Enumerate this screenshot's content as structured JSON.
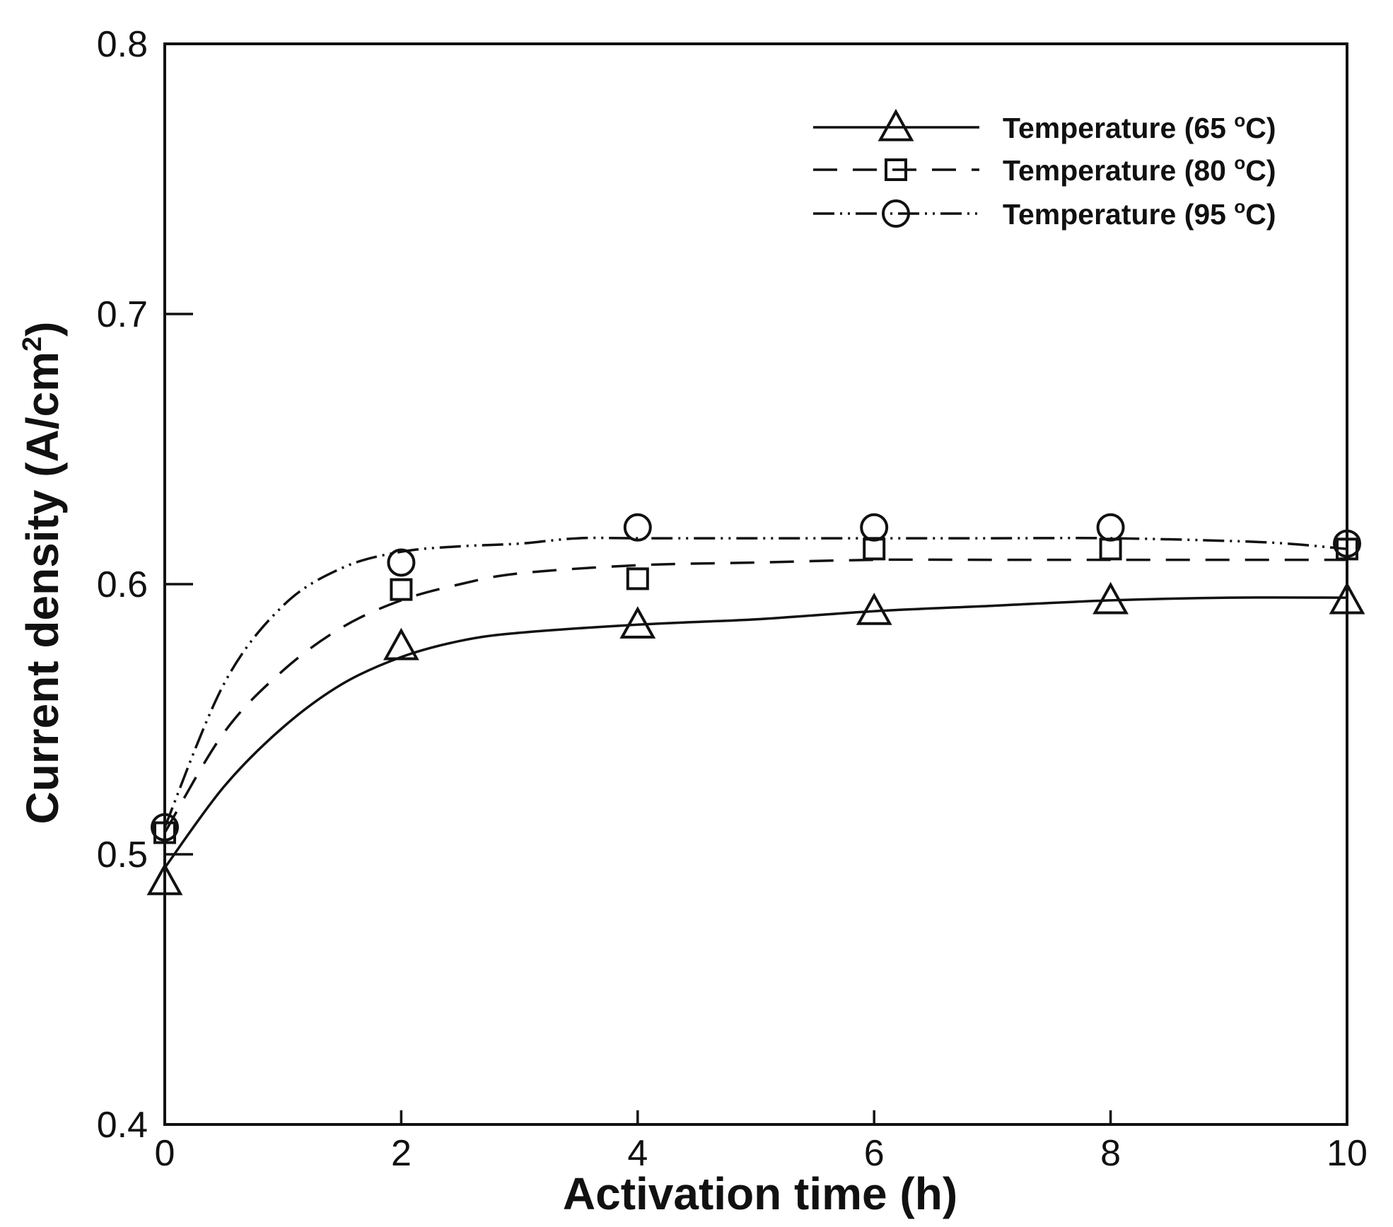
{
  "chart_data": {
    "type": "line",
    "title": "",
    "xlabel": "Activation time (h)",
    "ylabel_main": "Current density (A/cm",
    "ylabel_sup": "2",
    "ylabel_close": ")",
    "xlim": [
      0,
      10
    ],
    "ylim": [
      0.4,
      0.8
    ],
    "x_ticks": [
      0,
      2,
      4,
      6,
      8,
      10
    ],
    "x_tick_labels": [
      "0",
      "2",
      "4",
      "6",
      "8",
      "10"
    ],
    "y_ticks": [
      0.4,
      0.5,
      0.6,
      0.7,
      0.8
    ],
    "y_tick_labels": [
      "0.4",
      "0.5",
      "0.6",
      "0.7",
      "0.8"
    ],
    "grid": false,
    "legend_position": "top-right",
    "series": [
      {
        "name": "Temperature (65 °C)",
        "label_main": "Temperature (65 ",
        "label_sup": "o",
        "label_unit": "C)",
        "marker": "triangle",
        "line_style": "solid",
        "x": [
          0,
          2,
          4,
          6,
          8,
          10
        ],
        "values": [
          0.49,
          0.577,
          0.585,
          0.59,
          0.594,
          0.594
        ],
        "fit_x": [
          0,
          0.5,
          1,
          1.5,
          2,
          2.5,
          3,
          4,
          5,
          6,
          7,
          8,
          9,
          10
        ],
        "fit_y": [
          0.495,
          0.525,
          0.547,
          0.563,
          0.573,
          0.579,
          0.582,
          0.585,
          0.587,
          0.59,
          0.592,
          0.594,
          0.595,
          0.595
        ]
      },
      {
        "name": "Temperature (80 °C)",
        "label_main": "Temperature (80 ",
        "label_sup": "o",
        "label_unit": "C)",
        "marker": "square",
        "line_style": "dashed",
        "x": [
          0,
          2,
          4,
          6,
          8,
          10
        ],
        "values": [
          0.508,
          0.598,
          0.602,
          0.613,
          0.613,
          0.613
        ],
        "fit_x": [
          0,
          0.5,
          1,
          1.5,
          2,
          2.5,
          3,
          4,
          5,
          6,
          7,
          8,
          9,
          10
        ],
        "fit_y": [
          0.508,
          0.545,
          0.568,
          0.584,
          0.594,
          0.6,
          0.604,
          0.607,
          0.608,
          0.609,
          0.609,
          0.609,
          0.609,
          0.609
        ]
      },
      {
        "name": "Temperature (95 °C)",
        "label_main": "Temperature (95 ",
        "label_sup": "o",
        "label_unit": "C)",
        "marker": "circle",
        "line_style": "dash-dot-dot",
        "x": [
          0,
          2,
          4,
          6,
          8,
          10
        ],
        "values": [
          0.51,
          0.608,
          0.621,
          0.621,
          0.621,
          0.615
        ],
        "fit_x": [
          0,
          0.5,
          1,
          1.5,
          2,
          2.5,
          3,
          3.5,
          4,
          5,
          6,
          7,
          8,
          9,
          9.5,
          10
        ],
        "fit_y": [
          0.51,
          0.563,
          0.592,
          0.606,
          0.612,
          0.614,
          0.615,
          0.617,
          0.617,
          0.617,
          0.617,
          0.617,
          0.617,
          0.616,
          0.615,
          0.613
        ]
      }
    ]
  },
  "colors": {
    "ink": "#111111",
    "background": "#ffffff"
  }
}
